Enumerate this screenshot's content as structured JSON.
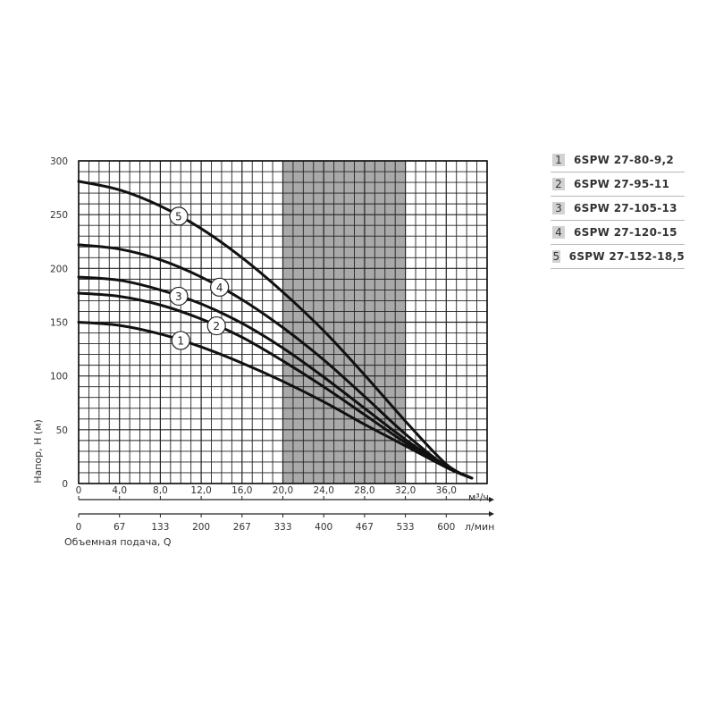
{
  "chart_data": {
    "type": "line",
    "ylabel": "Напор, H (м)",
    "xlabel": "Объемная подача, Q",
    "x_unit_top": "м³/ч",
    "x_unit_bottom": "л/мин",
    "ylim": [
      0,
      300
    ],
    "xlim": [
      0,
      40
    ],
    "y_ticks": [
      "0",
      "50",
      "100",
      "150",
      "200",
      "250",
      "300"
    ],
    "x_ticks_top": [
      "0",
      "4,0",
      "8,0",
      "12,0",
      "16,0",
      "20,0",
      "24,0",
      "28,0",
      "32,0",
      "36,0"
    ],
    "x_ticks_bottom": [
      "0",
      "67",
      "133",
      "200",
      "267",
      "333",
      "400",
      "467",
      "533",
      "600"
    ],
    "grid": true,
    "highlight_x_range": [
      20,
      32
    ],
    "series": [
      {
        "name": "1",
        "x": [
          0,
          4,
          8,
          12,
          16,
          20,
          24,
          28,
          32,
          36,
          38.5
        ],
        "y": [
          150,
          147,
          139,
          127,
          112,
          95,
          76,
          55,
          35,
          15,
          5
        ]
      },
      {
        "name": "2",
        "x": [
          0,
          4,
          8,
          12,
          16,
          20,
          24,
          28,
          32,
          36,
          38.5
        ],
        "y": [
          177,
          174,
          166,
          153,
          136,
          114,
          90,
          64,
          38,
          15,
          5
        ]
      },
      {
        "name": "3",
        "x": [
          0,
          4,
          8,
          12,
          16,
          20,
          24,
          28,
          32,
          36,
          38.5
        ],
        "y": [
          192,
          189,
          180,
          167,
          149,
          126,
          99,
          70,
          41,
          16,
          5
        ]
      },
      {
        "name": "4",
        "x": [
          0,
          4,
          8,
          12,
          16,
          20,
          24,
          28,
          32,
          36,
          38.5
        ],
        "y": [
          222,
          218,
          208,
          192,
          171,
          145,
          115,
          81,
          46,
          16,
          5
        ]
      },
      {
        "name": "5",
        "x": [
          0,
          4,
          8,
          12,
          16,
          20,
          24,
          28,
          32,
          36,
          38.5
        ],
        "y": [
          281,
          273,
          258,
          237,
          210,
          178,
          142,
          101,
          58,
          18,
          5
        ]
      }
    ]
  },
  "legend": {
    "items": [
      {
        "num": "1",
        "label": "6SPW 27-80-9,2"
      },
      {
        "num": "2",
        "label": "6SPW 27-95-11"
      },
      {
        "num": "3",
        "label": "6SPW 27-105-13"
      },
      {
        "num": "4",
        "label": "6SPW 27-120-15"
      },
      {
        "num": "5",
        "label": "6SPW 27-152-18,5"
      }
    ]
  },
  "colors": {
    "grid": "#222222",
    "curve": "#111111",
    "highlight": "#a9a9a9",
    "legend_box": "#d2d2d2"
  }
}
